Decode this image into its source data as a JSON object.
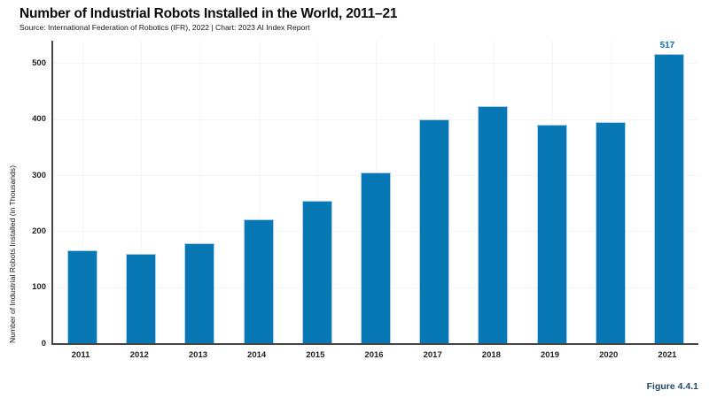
{
  "header": {
    "title": "Number of Industrial Robots Installed in the World, 2011–21",
    "source_line": "Source: International Federation of Robotics (IFR), 2022 | Chart: 2023 AI Index Report"
  },
  "footer": {
    "figure_label": "Figure 4.4.1"
  },
  "chart_data": {
    "type": "bar",
    "title": "Number of Industrial Robots Installed in the World, 2011–21",
    "source": "Source: International Federation of Robotics (IFR), 2022 | Chart: 2023 AI Index Report",
    "categories": [
      "2011",
      "2012",
      "2013",
      "2014",
      "2015",
      "2016",
      "2017",
      "2018",
      "2019",
      "2020",
      "2021"
    ],
    "values": [
      166,
      159,
      178,
      221,
      254,
      304,
      400,
      423,
      390,
      394,
      517
    ],
    "xlabel": "",
    "ylabel": "Number of Industrial Robots Installed (in Thousands)",
    "ylim": [
      0,
      540
    ],
    "yticks": [
      0,
      100,
      200,
      300,
      400,
      500
    ],
    "grid": true,
    "legend": "none",
    "bar_color": "#0778b4",
    "bar_border_color": "#abd0e7",
    "gridline_color": "#f4f4f7",
    "axis_color": "#454545",
    "annotations": [
      {
        "category": "2021",
        "text": "517",
        "color": "#0b6fad"
      }
    ],
    "figure_label": "Figure 4.4.1"
  }
}
